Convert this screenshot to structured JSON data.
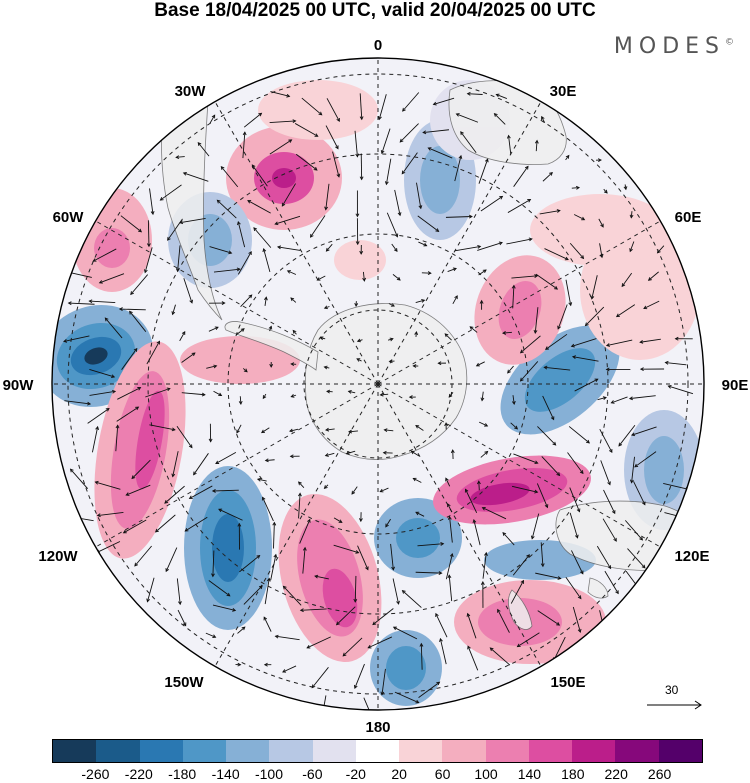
{
  "header": {
    "title": "Base 18/04/2025 00 UTC, valid 20/04/2025 00 UTC",
    "brand": "MODES",
    "brand_mark": "©"
  },
  "map": {
    "projection": "south polar stereographic",
    "longitude_labels": {
      "lon_0": "0",
      "lon_30E": "30E",
      "lon_60E": "60E",
      "lon_90E": "90E",
      "lon_120E": "120E",
      "lon_150E": "150E",
      "lon_180": "180",
      "lon_150W": "150W",
      "lon_120W": "120W",
      "lon_90W": "90W",
      "lon_60W": "60W",
      "lon_30W": "30W"
    },
    "colors": {
      "land": "#efefef",
      "coast": "#6a6a6a",
      "vector": "#111111",
      "grid": "#222222"
    }
  },
  "legend": {
    "reference_vector_label": "30",
    "tick_labels": [
      "-260",
      "-220",
      "-180",
      "-140",
      "-100",
      "-60",
      "-20",
      "20",
      "60",
      "100",
      "140",
      "180",
      "220",
      "260"
    ],
    "colors": [
      "#163a5a",
      "#1b5b8a",
      "#2a78b2",
      "#4f97c7",
      "#86b0d6",
      "#b7c8e4",
      "#e2e1ef",
      "#ffffff",
      "#f9d3d7",
      "#f4aebf",
      "#ec7fb0",
      "#dd4ea1",
      "#bb1e8a",
      "#86087b",
      "#54006a"
    ]
  }
}
